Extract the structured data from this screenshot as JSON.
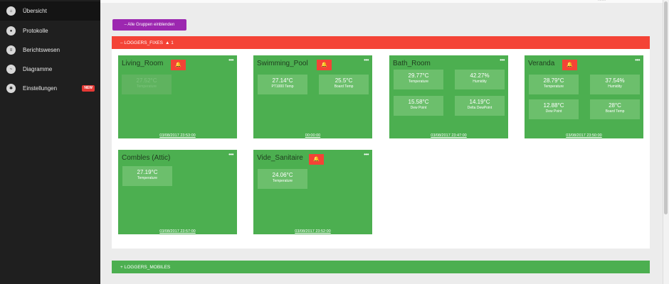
{
  "sidebar": {
    "items": [
      {
        "label": "Übersicht",
        "icon": "home-icon"
      },
      {
        "label": "Protokolle",
        "icon": "bell-icon"
      },
      {
        "label": "Berichtswesen",
        "icon": "report-icon"
      },
      {
        "label": "Diagramme",
        "icon": "chart-line-icon"
      },
      {
        "label": "Einstellungen",
        "icon": "gear-icon",
        "badge": "NEW"
      }
    ]
  },
  "top_text": "........",
  "toolbar": {
    "toggle_groups_label": "– Alle Gruppen einblenden"
  },
  "groups": {
    "fixes": {
      "label": "– LOGGERS_FIXES",
      "alert": "▲ 1",
      "status_color": "#f44336"
    },
    "mobiles": {
      "label": "+ LOGGERS_MOBILES",
      "status_color": "#4caf50"
    }
  },
  "loggers": [
    {
      "title": "Living_Room",
      "alarm": true,
      "date": "03/08/2017  23:53:00",
      "sensors": [
        {
          "value": "27.52°C",
          "label": "Temperature"
        }
      ]
    },
    {
      "title": "Swimming_Pool",
      "alarm": true,
      "date": "00:00:00",
      "sensors": [
        {
          "value": "27.14°C",
          "label": "PT1000 Temp"
        },
        {
          "value": "25.5°C",
          "label": "Board Temp"
        }
      ]
    },
    {
      "title": "Bath_Room",
      "alarm": false,
      "date": "03/08/2017  23:47:00",
      "sensors": [
        {
          "value": "29.77°C",
          "label": "Temperature"
        },
        {
          "value": "42.27%",
          "label": "Humidity"
        },
        {
          "value": "15.58°C",
          "label": "Dew Point"
        },
        {
          "value": "14.19°C",
          "label": "Delta DewPoint"
        }
      ]
    },
    {
      "title": "Veranda",
      "alarm": true,
      "date": "03/08/2017  23:50:00",
      "sensors": [
        {
          "value": "28.79°C",
          "label": "Temperature"
        },
        {
          "value": "37.54%",
          "label": "Humidity"
        },
        {
          "value": "12.88°C",
          "label": "Dew Point"
        },
        {
          "value": "28°C",
          "label": "Board Temp"
        }
      ]
    },
    {
      "title": "Combles (Attic)",
      "alarm": false,
      "date": "03/08/2017  23:57:00",
      "sensors": [
        {
          "value": "27.19°C",
          "label": "Temperature"
        }
      ]
    },
    {
      "title": "Vide_Sanitaire",
      "alarm": true,
      "date": "03/08/2017  23:52:00",
      "sensors": [
        {
          "value": "24.06°C",
          "label": "Temperature"
        }
      ]
    }
  ],
  "colors": {
    "card": "#4caf50",
    "alarm": "#f44336",
    "accent": "#9c27b0",
    "sidebar": "#1f1f1f"
  }
}
